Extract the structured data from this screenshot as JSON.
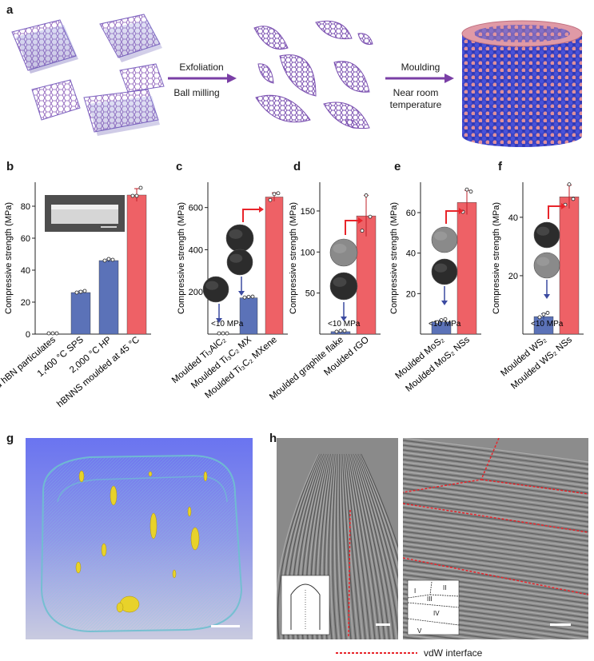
{
  "panel_labels": {
    "a": "a",
    "b": "b",
    "c": "c",
    "d": "d",
    "e": "e",
    "f": "f",
    "g": "g",
    "h": "h"
  },
  "panel_a": {
    "arrow1_top": "Exfoliation",
    "arrow1_bottom": "Ball milling",
    "arrow2_top": "Moulding",
    "arrow2_bottom_line1": "Near room",
    "arrow2_bottom_line2": "temperature"
  },
  "panel_h": {
    "legend": "vdW interface",
    "inset_labels": [
      "I",
      "II",
      "III",
      "IV",
      "V"
    ]
  },
  "colors": {
    "blue_bar": "#5b72b8",
    "red_bar": "#ee6166",
    "arrow_purple": "#7a3fa6",
    "red_arrow": "#e8252b"
  },
  "chart_data": [
    {
      "id": "b",
      "type": "bar",
      "ylabel": "Compressive strength (MPa)",
      "ylim": [
        0,
        95
      ],
      "yticks": [
        0,
        20,
        40,
        60,
        80
      ],
      "categories": [
        "Moulded hBN particulates",
        "1,400 °C SPS",
        "2,000 °C HP",
        "hBNNS moulded at 45 °C"
      ],
      "values": [
        0,
        26,
        46,
        87
      ],
      "colors": [
        "blue",
        "blue",
        "blue",
        "red"
      ],
      "errors": [
        0,
        1,
        1,
        4
      ],
      "points": [
        [
          0,
          0,
          0
        ],
        [
          25.5,
          26,
          26.5
        ],
        [
          45.5,
          46.5,
          46
        ],
        [
          86,
          86,
          91
        ]
      ],
      "annotations": []
    },
    {
      "id": "c",
      "type": "bar",
      "ylabel": "Compressive strength (MPa)",
      "ylim": [
        0,
        720
      ],
      "yticks": [
        200,
        400,
        600
      ],
      "categories": [
        "Moulded Ti₃AlC₂",
        "Moulded Ti₃C₂ MX",
        "Moulded Ti₃C₂ MXene"
      ],
      "values": [
        0,
        172,
        650
      ],
      "colors": [
        "blue",
        "blue",
        "red"
      ],
      "errors": [
        0,
        5,
        20
      ],
      "points": [
        [
          0,
          0,
          0
        ],
        [
          170,
          173,
          174
        ],
        [
          632,
          660,
          664
        ]
      ],
      "annotations": [
        "<10 MPa"
      ]
    },
    {
      "id": "d",
      "type": "bar",
      "ylabel": "Compressive strength (MPa)",
      "ylim": [
        0,
        185
      ],
      "yticks": [
        50,
        100,
        150
      ],
      "categories": [
        "Moulded graphite flake",
        "Moulded rGO"
      ],
      "values": [
        3,
        144
      ],
      "colors": [
        "blue",
        "red"
      ],
      "errors": [
        0,
        25
      ],
      "points": [
        [
          2,
          3,
          3
        ],
        [
          125,
          168,
          142
        ]
      ],
      "annotations": [
        "<10 MPa"
      ]
    },
    {
      "id": "e",
      "type": "bar",
      "ylabel": "Compressive strength (MPa)",
      "ylim": [
        0,
        75
      ],
      "yticks": [
        20,
        40,
        60
      ],
      "categories": [
        "Moulded MoS₂",
        "Moulded MoS₂ NSs"
      ],
      "values": [
        6,
        65
      ],
      "colors": [
        "blue",
        "red"
      ],
      "errors": [
        1,
        6
      ],
      "points": [
        [
          5.5,
          6.5,
          7
        ],
        [
          60,
          71,
          70
        ]
      ],
      "annotations": [
        "<10 MPa"
      ]
    },
    {
      "id": "f",
      "type": "bar",
      "ylabel": "Compressive strength (MPa)",
      "ylim": [
        0,
        52
      ],
      "yticks": [
        20,
        40
      ],
      "categories": [
        "Moulded WS₂",
        "Moulded WS₂ NSs"
      ],
      "values": [
        6,
        47
      ],
      "colors": [
        "blue",
        "red"
      ],
      "errors": [
        1,
        4
      ],
      "points": [
        [
          5.5,
          6.5,
          7
        ],
        [
          44,
          51,
          46
        ]
      ],
      "annotations": [
        "<10 MPa"
      ]
    }
  ]
}
